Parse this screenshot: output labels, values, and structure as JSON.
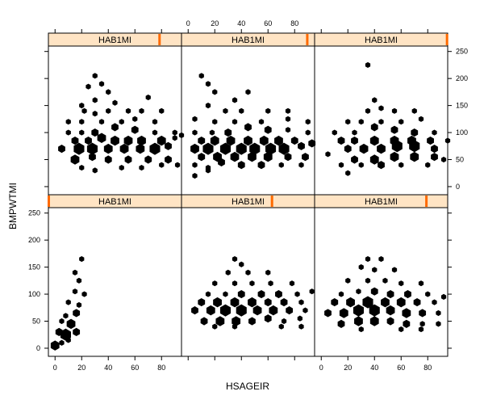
{
  "chart_data": {
    "type": "scatter",
    "subtype": "hexbin-trellis",
    "xlabel": "HSAGEIR",
    "ylabel": "BMPWTMI",
    "xlim": [
      -5,
      95
    ],
    "ylim": [
      -15,
      260
    ],
    "xticks": [
      0,
      20,
      40,
      60,
      80
    ],
    "yticks": [
      0,
      50,
      100,
      150,
      200,
      250
    ],
    "layout": {
      "rows": 2,
      "cols": 3
    },
    "strip_background": "#ffe4c4",
    "strip_indicator_color": "#ff6a00",
    "mark_color": "#000000",
    "panels": [
      {
        "row": 1,
        "col": 1,
        "strip_label": "HAB1MI",
        "strip_level": 0.835,
        "x_axis_top": false,
        "y_axis_left": false,
        "points": [
          [
            30,
            205
          ],
          [
            35,
            190
          ],
          [
            25,
            185
          ],
          [
            40,
            175
          ],
          [
            30,
            160
          ],
          [
            45,
            155
          ],
          [
            20,
            150
          ],
          [
            70,
            165
          ],
          [
            22,
            140
          ],
          [
            30,
            135
          ],
          [
            40,
            140
          ],
          [
            55,
            140
          ],
          [
            65,
            140
          ],
          [
            80,
            140
          ],
          [
            10,
            120
          ],
          [
            20,
            120
          ],
          [
            35,
            120
          ],
          [
            50,
            120
          ],
          [
            60,
            125
          ],
          [
            75,
            120
          ],
          [
            10,
            100
          ],
          [
            20,
            100
          ],
          [
            30,
            100
          ],
          [
            45,
            110
          ],
          [
            60,
            105
          ],
          [
            75,
            100
          ],
          [
            90,
            100
          ],
          [
            95,
            95
          ],
          [
            15,
            85
          ],
          [
            25,
            85
          ],
          [
            35,
            90
          ],
          [
            45,
            85
          ],
          [
            55,
            85
          ],
          [
            65,
            85
          ],
          [
            80,
            85
          ],
          [
            90,
            90
          ],
          [
            5,
            70
          ],
          [
            18,
            70
          ],
          [
            28,
            70
          ],
          [
            40,
            70
          ],
          [
            52,
            70
          ],
          [
            64,
            70
          ],
          [
            75,
            70
          ],
          [
            85,
            75
          ],
          [
            97,
            60
          ],
          [
            15,
            50
          ],
          [
            28,
            55
          ],
          [
            40,
            50
          ],
          [
            55,
            50
          ],
          [
            70,
            50
          ],
          [
            85,
            50
          ],
          [
            92,
            40
          ],
          [
            20,
            35
          ],
          [
            30,
            30
          ],
          [
            50,
            35
          ],
          [
            65,
            35
          ],
          [
            80,
            40
          ]
        ],
        "sizes": [
          1,
          1,
          1,
          1,
          1,
          1,
          1,
          1,
          1,
          1,
          1,
          1,
          1,
          1,
          1,
          1,
          1,
          1,
          1,
          1,
          1,
          1,
          2,
          2,
          2,
          1,
          1,
          1,
          2,
          2,
          3,
          3,
          3,
          3,
          3,
          1,
          2,
          4,
          4,
          3,
          3,
          3,
          4,
          2,
          1,
          3,
          2,
          2,
          2,
          2,
          2,
          1,
          1,
          1,
          1,
          1,
          1
        ]
      },
      {
        "row": 1,
        "col": 2,
        "strip_label": "HAB1MI",
        "strip_level": 0.945,
        "x_axis_top": true,
        "y_axis_left": false,
        "points": [
          [
            10,
            205
          ],
          [
            15,
            190
          ],
          [
            20,
            175
          ],
          [
            45,
            175
          ],
          [
            35,
            160
          ],
          [
            15,
            150
          ],
          [
            28,
            140
          ],
          [
            40,
            140
          ],
          [
            60,
            140
          ],
          [
            75,
            140
          ],
          [
            5,
            125
          ],
          [
            20,
            120
          ],
          [
            35,
            120
          ],
          [
            55,
            120
          ],
          [
            75,
            125
          ],
          [
            90,
            120
          ],
          [
            5,
            100
          ],
          [
            18,
            100
          ],
          [
            30,
            100
          ],
          [
            45,
            110
          ],
          [
            60,
            105
          ],
          [
            75,
            105
          ],
          [
            90,
            100
          ],
          [
            10,
            85
          ],
          [
            20,
            85
          ],
          [
            32,
            85
          ],
          [
            45,
            85
          ],
          [
            57,
            85
          ],
          [
            68,
            85
          ],
          [
            80,
            85
          ],
          [
            93,
            80
          ],
          [
            5,
            70
          ],
          [
            15,
            70
          ],
          [
            28,
            70
          ],
          [
            40,
            70
          ],
          [
            50,
            70
          ],
          [
            62,
            70
          ],
          [
            72,
            70
          ],
          [
            85,
            75
          ],
          [
            10,
            55
          ],
          [
            22,
            55
          ],
          [
            35,
            55
          ],
          [
            48,
            55
          ],
          [
            60,
            55
          ],
          [
            75,
            55
          ],
          [
            88,
            55
          ],
          [
            5,
            40
          ],
          [
            15,
            35
          ],
          [
            25,
            45
          ],
          [
            40,
            40
          ],
          [
            55,
            40
          ],
          [
            70,
            40
          ],
          [
            85,
            40
          ],
          [
            5,
            20
          ],
          [
            15,
            30
          ]
        ],
        "sizes": [
          1,
          1,
          1,
          1,
          1,
          1,
          1,
          1,
          1,
          1,
          1,
          1,
          1,
          1,
          1,
          1,
          1,
          1,
          2,
          2,
          2,
          1,
          1,
          2,
          3,
          3,
          3,
          3,
          3,
          2,
          2,
          3,
          4,
          4,
          4,
          4,
          4,
          4,
          2,
          2,
          3,
          3,
          3,
          3,
          2,
          2,
          1,
          1,
          2,
          2,
          2,
          1,
          1,
          1,
          1
        ]
      },
      {
        "row": 1,
        "col": 3,
        "strip_label": "HAB1MI",
        "strip_level": 0.995,
        "x_axis_top": false,
        "y_axis_left": false,
        "points": [
          [
            35,
            225
          ],
          [
            40,
            160
          ],
          [
            45,
            145
          ],
          [
            35,
            140
          ],
          [
            55,
            140
          ],
          [
            70,
            140
          ],
          [
            20,
            120
          ],
          [
            30,
            120
          ],
          [
            45,
            120
          ],
          [
            60,
            120
          ],
          [
            75,
            125
          ],
          [
            10,
            100
          ],
          [
            25,
            100
          ],
          [
            40,
            110
          ],
          [
            55,
            105
          ],
          [
            70,
            100
          ],
          [
            85,
            100
          ],
          [
            95,
            85
          ],
          [
            15,
            85
          ],
          [
            25,
            85
          ],
          [
            40,
            85
          ],
          [
            55,
            85
          ],
          [
            68,
            85
          ],
          [
            82,
            85
          ],
          [
            5,
            60
          ],
          [
            20,
            70
          ],
          [
            32,
            70
          ],
          [
            45,
            70
          ],
          [
            57,
            75
          ],
          [
            70,
            75
          ],
          [
            85,
            70
          ],
          [
            15,
            40
          ],
          [
            25,
            50
          ],
          [
            40,
            50
          ],
          [
            55,
            55
          ],
          [
            70,
            55
          ],
          [
            85,
            55
          ],
          [
            92,
            50
          ],
          [
            20,
            25
          ],
          [
            30,
            40
          ],
          [
            45,
            40
          ],
          [
            60,
            40
          ],
          [
            80,
            40
          ]
        ],
        "sizes": [
          1,
          1,
          1,
          1,
          1,
          1,
          1,
          1,
          1,
          1,
          1,
          1,
          1,
          2,
          2,
          2,
          1,
          1,
          2,
          2,
          3,
          3,
          3,
          2,
          1,
          2,
          3,
          3,
          4,
          4,
          2,
          1,
          2,
          3,
          3,
          3,
          2,
          1,
          1,
          1,
          2,
          1,
          1
        ]
      },
      {
        "row": 2,
        "col": 1,
        "strip_label": "HAB1MI",
        "strip_level": 0.003,
        "x_axis_top": false,
        "y_axis_left": true,
        "points": [
          [
            20,
            165
          ],
          [
            15,
            140
          ],
          [
            18,
            125
          ],
          [
            15,
            105
          ],
          [
            22,
            100
          ],
          [
            10,
            85
          ],
          [
            18,
            80
          ],
          [
            8,
            60
          ],
          [
            16,
            65
          ],
          [
            5,
            50
          ],
          [
            12,
            45
          ],
          [
            16,
            30
          ],
          [
            3,
            30
          ],
          [
            8,
            25
          ],
          [
            10,
            15
          ],
          [
            0,
            5
          ],
          [
            5,
            10
          ]
        ],
        "sizes": [
          1,
          1,
          1,
          1,
          1,
          1,
          1,
          1,
          2,
          1,
          3,
          2,
          2,
          4,
          1,
          3,
          1
        ]
      },
      {
        "row": 2,
        "col": 2,
        "strip_label": "HAB1MI",
        "strip_level": 0.68,
        "x_axis_top": false,
        "y_axis_left": false,
        "points": [
          [
            35,
            165
          ],
          [
            40,
            155
          ],
          [
            30,
            140
          ],
          [
            45,
            140
          ],
          [
            60,
            140
          ],
          [
            20,
            120
          ],
          [
            35,
            120
          ],
          [
            48,
            120
          ],
          [
            62,
            120
          ],
          [
            78,
            120
          ],
          [
            15,
            100
          ],
          [
            28,
            100
          ],
          [
            40,
            100
          ],
          [
            55,
            100
          ],
          [
            68,
            100
          ],
          [
            82,
            100
          ],
          [
            93,
            105
          ],
          [
            10,
            85
          ],
          [
            22,
            85
          ],
          [
            35,
            85
          ],
          [
            48,
            85
          ],
          [
            60,
            85
          ],
          [
            72,
            85
          ],
          [
            85,
            85
          ],
          [
            5,
            70
          ],
          [
            17,
            70
          ],
          [
            28,
            70
          ],
          [
            40,
            70
          ],
          [
            52,
            70
          ],
          [
            64,
            70
          ],
          [
            76,
            70
          ],
          [
            88,
            70
          ],
          [
            12,
            50
          ],
          [
            24,
            50
          ],
          [
            36,
            50
          ],
          [
            48,
            50
          ],
          [
            60,
            55
          ],
          [
            72,
            50
          ],
          [
            84,
            55
          ],
          [
            96,
            60
          ],
          [
            20,
            40
          ],
          [
            35,
            40
          ],
          [
            70,
            40
          ],
          [
            85,
            40
          ]
        ],
        "sizes": [
          1,
          1,
          1,
          1,
          1,
          1,
          1,
          1,
          1,
          1,
          1,
          1,
          2,
          2,
          2,
          1,
          1,
          2,
          3,
          3,
          3,
          2,
          2,
          1,
          2,
          3,
          4,
          4,
          3,
          3,
          2,
          1,
          2,
          3,
          3,
          2,
          2,
          1,
          1,
          1,
          1,
          1,
          1,
          1
        ]
      },
      {
        "row": 2,
        "col": 3,
        "strip_label": "HAB1MI",
        "strip_level": 0.84,
        "x_axis_top": false,
        "y_axis_left": false,
        "points": [
          [
            35,
            165
          ],
          [
            45,
            165
          ],
          [
            30,
            150
          ],
          [
            40,
            145
          ],
          [
            55,
            145
          ],
          [
            20,
            125
          ],
          [
            35,
            125
          ],
          [
            48,
            125
          ],
          [
            60,
            120
          ],
          [
            75,
            120
          ],
          [
            15,
            100
          ],
          [
            28,
            105
          ],
          [
            40,
            105
          ],
          [
            52,
            100
          ],
          [
            65,
            100
          ],
          [
            80,
            100
          ],
          [
            92,
            95
          ],
          [
            10,
            85
          ],
          [
            22,
            85
          ],
          [
            35,
            85
          ],
          [
            48,
            85
          ],
          [
            60,
            85
          ],
          [
            72,
            85
          ],
          [
            85,
            85
          ],
          [
            5,
            65
          ],
          [
            17,
            65
          ],
          [
            28,
            70
          ],
          [
            40,
            70
          ],
          [
            52,
            70
          ],
          [
            64,
            65
          ],
          [
            76,
            65
          ],
          [
            88,
            65
          ],
          [
            15,
            45
          ],
          [
            28,
            50
          ],
          [
            40,
            50
          ],
          [
            52,
            50
          ],
          [
            64,
            45
          ],
          [
            76,
            45
          ],
          [
            88,
            45
          ],
          [
            30,
            35
          ],
          [
            60,
            35
          ],
          [
            75,
            35
          ]
        ],
        "sizes": [
          1,
          1,
          1,
          1,
          1,
          1,
          1,
          1,
          1,
          1,
          1,
          1,
          2,
          2,
          2,
          1,
          1,
          2,
          3,
          4,
          3,
          3,
          2,
          1,
          2,
          3,
          4,
          4,
          3,
          3,
          2,
          1,
          2,
          3,
          3,
          2,
          2,
          1,
          1,
          1,
          1,
          1
        ]
      }
    ]
  }
}
